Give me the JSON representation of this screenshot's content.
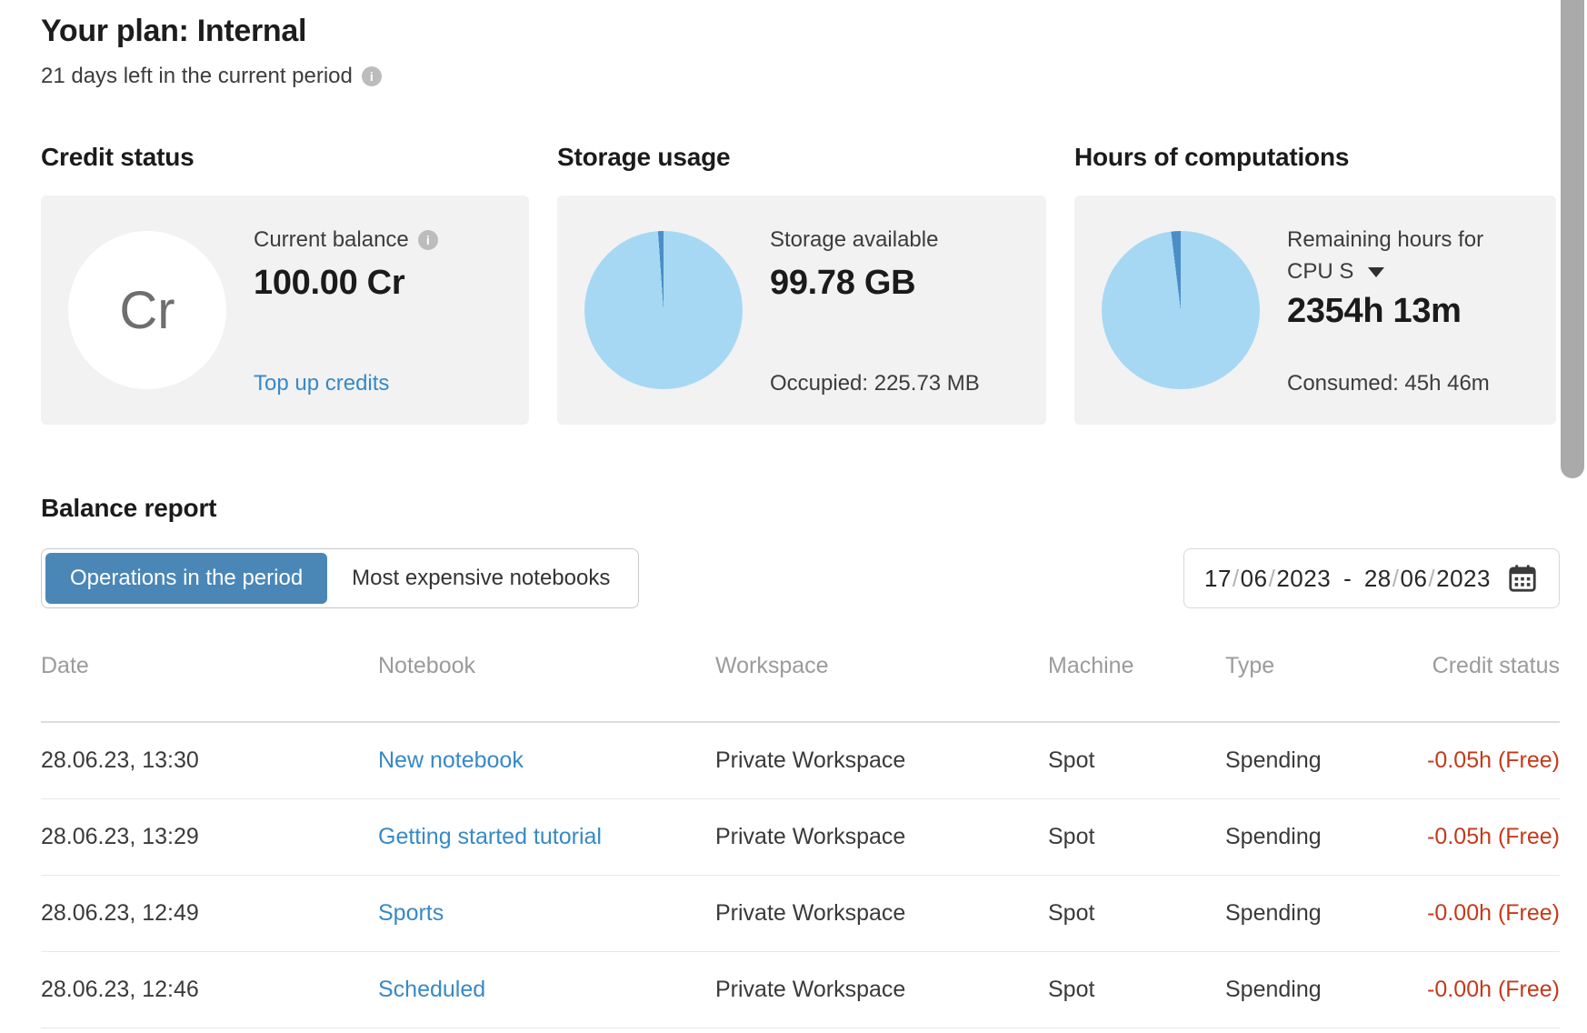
{
  "header": {
    "title": "Your plan: Internal",
    "subtitle": "21 days left in the current period"
  },
  "cards": {
    "credit": {
      "section_title": "Credit status",
      "badge": "Cr",
      "label": "Current balance",
      "value": "100.00 Cr",
      "link": "Top up credits"
    },
    "storage": {
      "section_title": "Storage usage",
      "label": "Storage available",
      "value": "99.78 GB",
      "footer": "Occupied: 225.73 MB",
      "pie": {
        "type": "pie",
        "used_deg": 4,
        "used_color": "#4b8ec6",
        "free_color": "#a6d8f4",
        "available": "99.78 GB",
        "occupied": "225.73 MB"
      }
    },
    "hours": {
      "section_title": "Hours of computations",
      "label": "Remaining hours for",
      "selector": "CPU S",
      "value": "2354h 13m",
      "footer": "Consumed: 45h 46m",
      "pie": {
        "type": "pie",
        "used_deg": 7,
        "used_color": "#4b8ec6",
        "free_color": "#a6d8f4",
        "remaining": "2354h 13m",
        "consumed": "45h 46m"
      }
    }
  },
  "balance_report": {
    "title": "Balance report",
    "tabs": [
      {
        "label": "Operations in the period",
        "active": true
      },
      {
        "label": "Most expensive notebooks",
        "active": false
      }
    ],
    "date_range": {
      "start": "17/06/2023",
      "separator": "-",
      "end": "28/06/2023"
    }
  },
  "table": {
    "columns": [
      "Date",
      "Notebook",
      "Workspace",
      "Machine",
      "Type",
      "Credit status"
    ],
    "rows": [
      {
        "date": "28.06.23, 13:30",
        "notebook": "New notebook",
        "workspace": "Private Workspace",
        "machine": "Spot",
        "type": "Spending",
        "credit": "-0.05h (Free)"
      },
      {
        "date": "28.06.23, 13:29",
        "notebook": "Getting started tutorial",
        "workspace": "Private Workspace",
        "machine": "Spot",
        "type": "Spending",
        "credit": "-0.05h (Free)"
      },
      {
        "date": "28.06.23, 12:49",
        "notebook": "Sports",
        "workspace": "Private Workspace",
        "machine": "Spot",
        "type": "Spending",
        "credit": "-0.00h (Free)"
      },
      {
        "date": "28.06.23, 12:46",
        "notebook": "Scheduled",
        "workspace": "Private Workspace",
        "machine": "Spot",
        "type": "Spending",
        "credit": "-0.00h (Free)"
      }
    ]
  },
  "colors": {
    "accent_blue": "#4a87b6",
    "link_blue": "#3789c7",
    "negative_red": "#c43a1b",
    "pie_light": "#a6d8f4",
    "pie_dark": "#4b8ec6",
    "card_bg": "#f2f2f2",
    "info_icon_bg": "#bcbcbc",
    "scrollbar": "#aaaaaa"
  }
}
